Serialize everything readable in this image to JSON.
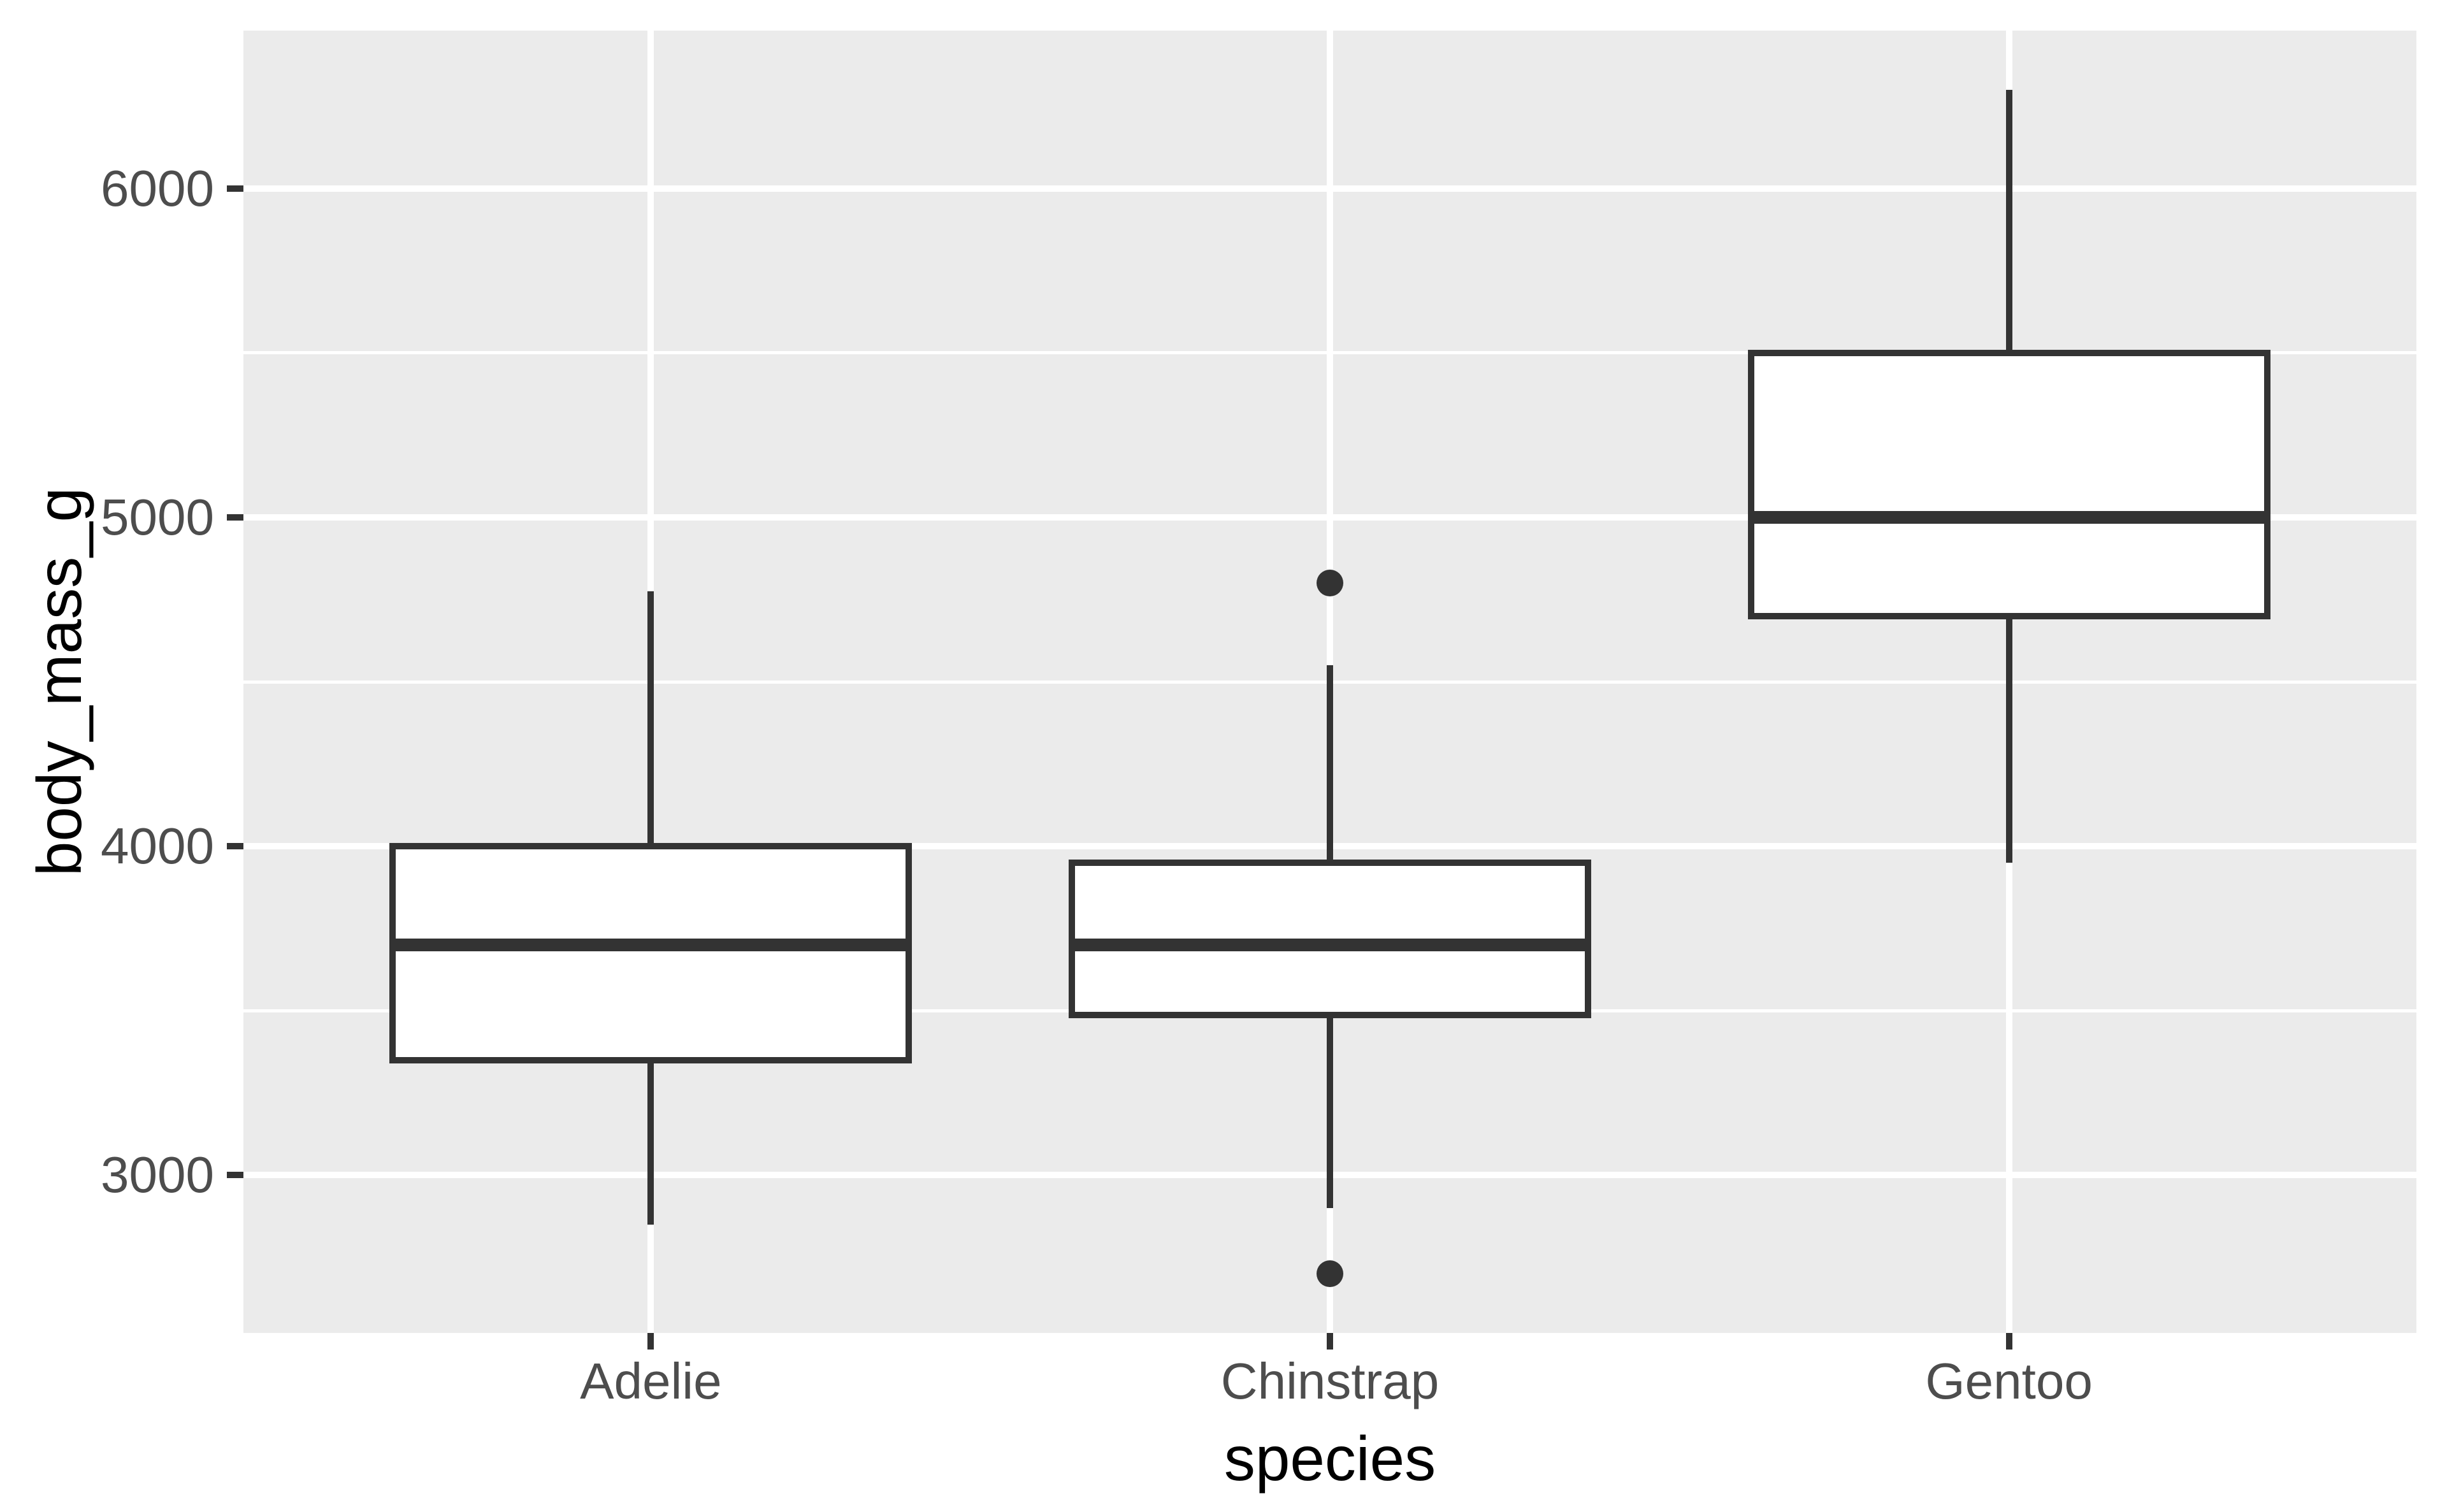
{
  "chart_data": {
    "type": "boxplot",
    "title": "",
    "x_axis": {
      "label": "species",
      "categories": [
        "Adelie",
        "Chinstrap",
        "Gentoo"
      ]
    },
    "y_axis": {
      "label": "body_mass_g",
      "tick_labels": [
        "3000",
        "4000",
        "5000",
        "6000"
      ],
      "tick_values": [
        3000,
        4000,
        5000,
        6000
      ],
      "minor_tick_values": [
        3500,
        4500,
        5500
      ],
      "ylim": [
        2520,
        6480
      ]
    },
    "series": [
      {
        "name": "Adelie",
        "whisker_low": 2850,
        "q1": 3350,
        "median": 3700,
        "q3": 4000,
        "whisker_high": 4775,
        "outliers": []
      },
      {
        "name": "Chinstrap",
        "whisker_low": 2900,
        "q1": 3487.5,
        "median": 3700,
        "q3": 3950,
        "whisker_high": 4550,
        "outliers": [
          4800,
          2700
        ]
      },
      {
        "name": "Gentoo",
        "whisker_low": 3950,
        "q1": 4700,
        "median": 5000,
        "q3": 5500,
        "whisker_high": 6300,
        "outliers": []
      }
    ],
    "legend": null,
    "grid": "on",
    "colors": {
      "panel_background": "#EBEBEB",
      "gridline": "#FFFFFF",
      "box_stroke": "#333333",
      "box_fill": "#FFFFFF",
      "outlier": "#333333",
      "tick_mark": "#333333",
      "tick_label": "#4D4D4D",
      "axis_title": "#000000",
      "figure_background": "#FFFFFF"
    }
  }
}
